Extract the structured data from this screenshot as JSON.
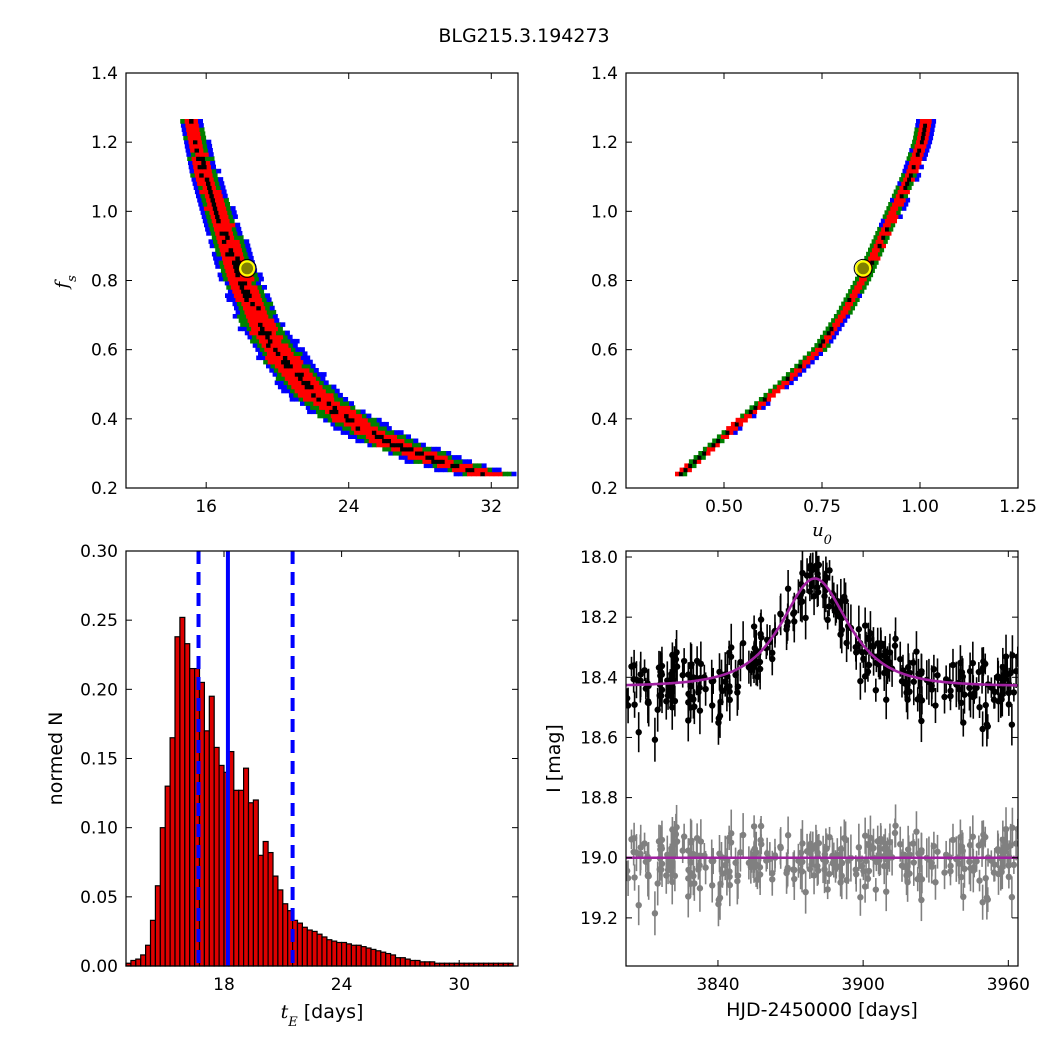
{
  "figure": {
    "title": "BLG215.3.194273"
  },
  "colors": {
    "level1": "#000000",
    "level2": "#ff0000",
    "level3": "#008000",
    "level4": "#0000ff",
    "marker_face": "#808000",
    "marker_edge": "#ffff00",
    "hist_fill": "#dd0000",
    "hist_edge": "#000000",
    "model": "#a020a0",
    "data_main": "#000000",
    "data_resid": "#808080",
    "vline": "#0000ff"
  },
  "chart_data": [
    {
      "id": "ts_fs",
      "type": "heatmap",
      "title": "",
      "xlabel": "",
      "ylabel": "f_s",
      "ylabel_main": "f",
      "ylabel_sub": "s",
      "xlim": [
        11.5,
        33.5
      ],
      "ylim": [
        0.2,
        1.4
      ],
      "xticks": [
        16,
        24,
        32
      ],
      "yticks": [
        0.2,
        0.4,
        0.6,
        0.8,
        1.0,
        1.2,
        1.4
      ],
      "xtick_labels": [
        "16",
        "24",
        "32"
      ],
      "ytick_labels": [
        "0.2",
        "0.4",
        "0.6",
        "0.8",
        "1.0",
        "1.2",
        "1.4"
      ],
      "ridge": [
        [
          15.0,
          1.26
        ],
        [
          15.8,
          1.1
        ],
        [
          16.8,
          0.95
        ],
        [
          17.8,
          0.8
        ],
        [
          19.0,
          0.66
        ],
        [
          20.5,
          0.55
        ],
        [
          22.0,
          0.46
        ],
        [
          24.0,
          0.39
        ],
        [
          26.5,
          0.32
        ],
        [
          29.0,
          0.27
        ],
        [
          31.5,
          0.235
        ]
      ],
      "best_fit": [
        18.3,
        0.835
      ]
    },
    {
      "id": "u0_fs",
      "type": "heatmap",
      "title": "",
      "xlabel": "u_0",
      "xlabel_main": "u",
      "xlabel_sub": "0",
      "ylabel": "",
      "xlim": [
        0.25,
        1.25
      ],
      "ylim": [
        0.2,
        1.4
      ],
      "xticks": [
        0.5,
        0.75,
        1.0,
        1.25
      ],
      "yticks": [
        0.2,
        0.4,
        0.6,
        0.8,
        1.0,
        1.2,
        1.4
      ],
      "xtick_labels": [
        "0.50",
        "0.75",
        "1.00",
        "1.25"
      ],
      "ytick_labels": [
        "0.2",
        "0.4",
        "0.6",
        "0.8",
        "1.0",
        "1.2",
        "1.4"
      ],
      "ridge": [
        [
          0.385,
          0.235
        ],
        [
          0.45,
          0.3
        ],
        [
          0.55,
          0.4
        ],
        [
          0.65,
          0.5
        ],
        [
          0.74,
          0.6
        ],
        [
          0.8,
          0.7
        ],
        [
          0.85,
          0.8
        ],
        [
          0.89,
          0.9
        ],
        [
          0.93,
          1.0
        ],
        [
          0.97,
          1.1
        ],
        [
          1.0,
          1.2
        ],
        [
          1.01,
          1.26
        ]
      ],
      "best_fit": [
        0.855,
        0.835
      ]
    },
    {
      "id": "tE_hist",
      "type": "bar",
      "title": "",
      "xlabel_math": "t",
      "xlabel_sub": "E",
      "xlabel_unit": "[days]",
      "ylabel": "normed N",
      "xlim": [
        13.0,
        33.0
      ],
      "ylim": [
        0.0,
        0.3
      ],
      "xticks": [
        18,
        24,
        30
      ],
      "yticks": [
        0.0,
        0.05,
        0.1,
        0.15,
        0.2,
        0.25,
        0.3
      ],
      "xtick_labels": [
        "18",
        "24",
        "30"
      ],
      "ytick_labels": [
        "0.00",
        "0.05",
        "0.10",
        "0.15",
        "0.20",
        "0.25",
        "0.30"
      ],
      "bin_start": 13.0,
      "bin_width": 0.25,
      "values": [
        0.002,
        0.004,
        0.005,
        0.008,
        0.015,
        0.033,
        0.058,
        0.1,
        0.13,
        0.165,
        0.238,
        0.252,
        0.233,
        0.215,
        0.215,
        0.205,
        0.17,
        0.195,
        0.158,
        0.145,
        0.14,
        0.155,
        0.127,
        0.127,
        0.143,
        0.118,
        0.12,
        0.08,
        0.09,
        0.082,
        0.065,
        0.055,
        0.045,
        0.04,
        0.033,
        0.031,
        0.028,
        0.026,
        0.025,
        0.023,
        0.021,
        0.019,
        0.018,
        0.017,
        0.017,
        0.016,
        0.015,
        0.015,
        0.014,
        0.013,
        0.012,
        0.011,
        0.01,
        0.009,
        0.008,
        0.006,
        0.006,
        0.005,
        0.004,
        0.004,
        0.003,
        0.003,
        0.003,
        0.002,
        0.002,
        0.002,
        0.002,
        0.002,
        0.002,
        0.002,
        0.002,
        0.002,
        0.002,
        0.002,
        0.002,
        0.002,
        0.002,
        0.002,
        0.002
      ],
      "median": 18.2,
      "lower": 16.7,
      "upper": 21.5
    },
    {
      "id": "lightcurve",
      "type": "scatter",
      "title": "",
      "xlabel": "HJD-2450000 [days]",
      "ylabel": "I [mag]",
      "xlim": [
        3802,
        3964
      ],
      "ylim": [
        19.36,
        17.98
      ],
      "xticks": [
        3840,
        3900,
        3960
      ],
      "yticks": [
        18.0,
        18.2,
        18.4,
        18.6,
        18.8,
        19.0,
        19.2
      ],
      "xtick_labels": [
        "3840",
        "3900",
        "3960"
      ],
      "ytick_labels": [
        "18.0",
        "18.2",
        "18.4",
        "18.6",
        "18.8",
        "19.0",
        "19.2"
      ],
      "baseline": 18.43,
      "resid_offset": 19.0,
      "model": {
        "t0": 3880,
        "tE": 18.2,
        "u0": 0.855,
        "fs": 0.835
      },
      "n_points": 300
    }
  ]
}
